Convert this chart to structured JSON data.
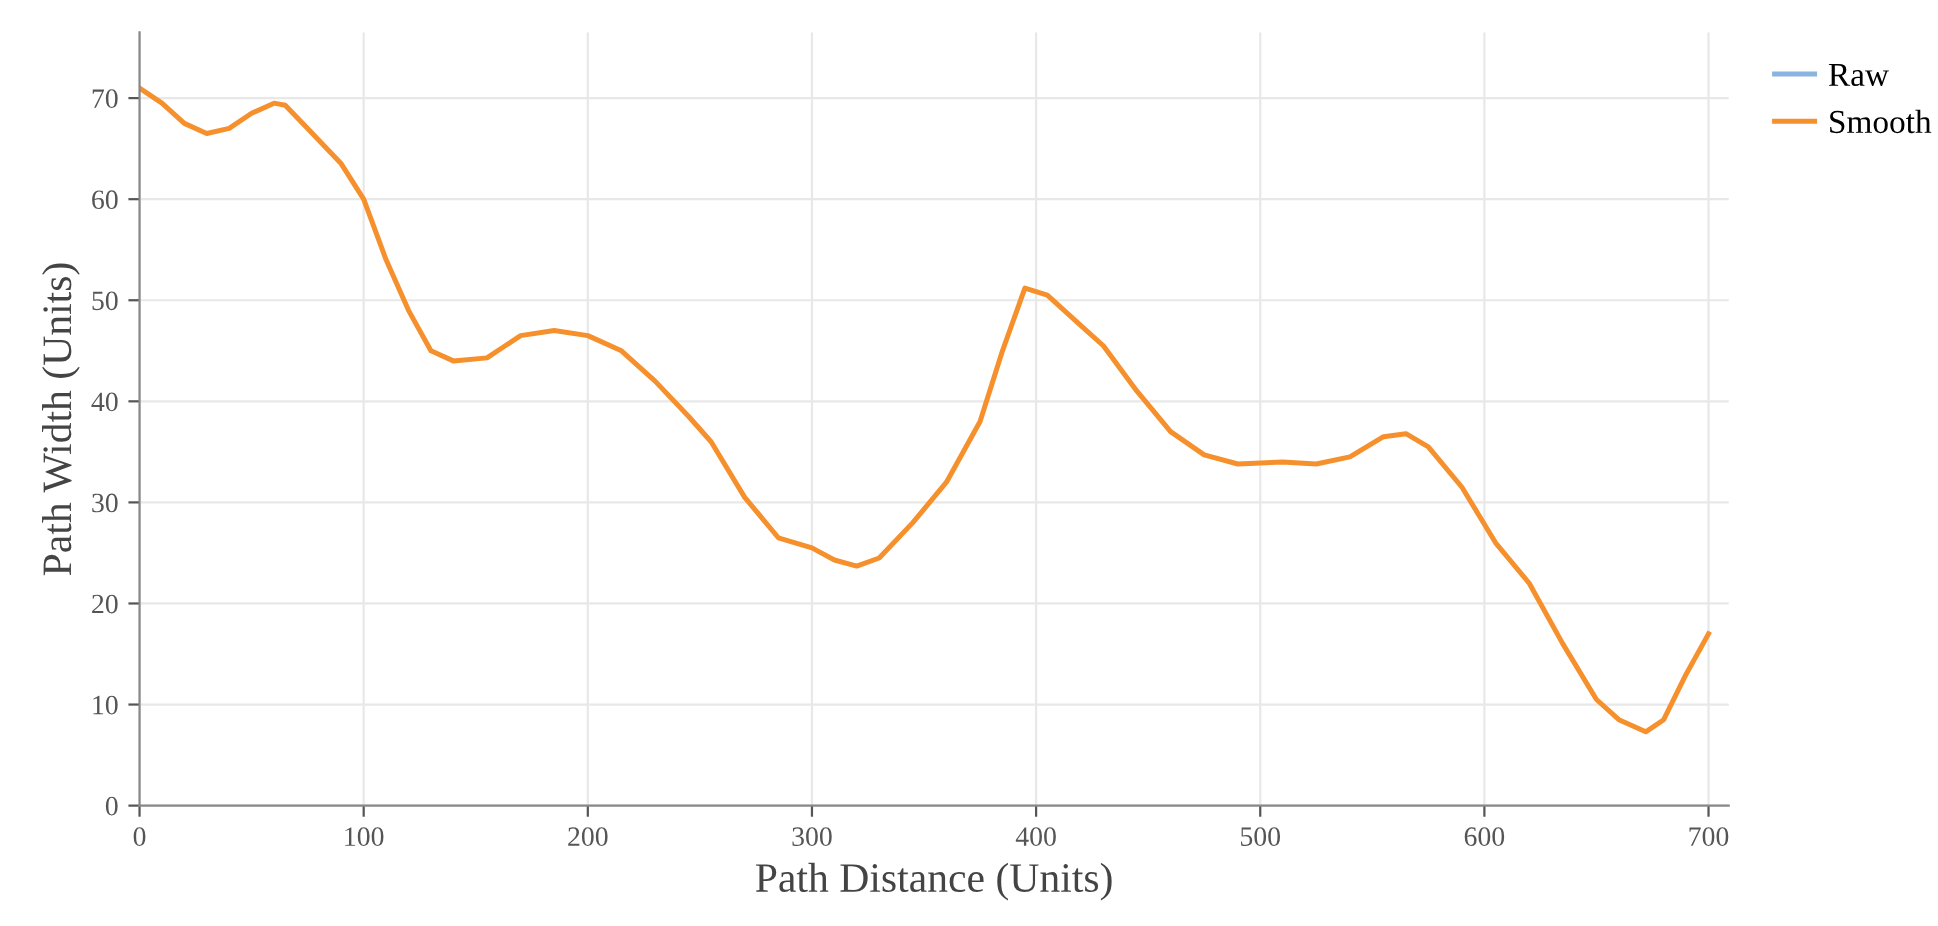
{
  "chart_data": {
    "type": "line",
    "xlabel": "Path Distance (Units)",
    "ylabel": "Path Width (Units)",
    "x": [
      0,
      10,
      20,
      30,
      40,
      50,
      60,
      65,
      75,
      90,
      100,
      110,
      120,
      130,
      140,
      155,
      170,
      185,
      200,
      215,
      230,
      245,
      255,
      270,
      285,
      300,
      310,
      320,
      330,
      345,
      360,
      375,
      385,
      395,
      405,
      420,
      430,
      445,
      460,
      475,
      490,
      510,
      525,
      540,
      555,
      565,
      575,
      590,
      605,
      620,
      635,
      650,
      660,
      672,
      680,
      690,
      700
    ],
    "series": [
      {
        "name": "Raw",
        "color": "#8ab4e0",
        "values": [
          null,
          null,
          null,
          null,
          null,
          null,
          null,
          null,
          null,
          null,
          null,
          null,
          null,
          null,
          null,
          null,
          null,
          null,
          null,
          null,
          null,
          null,
          null,
          null,
          null,
          null,
          null,
          null,
          null,
          null,
          null,
          null,
          null,
          null,
          null,
          null,
          null,
          null,
          null,
          null,
          null,
          null,
          null,
          null,
          null,
          null,
          null,
          null,
          null,
          null,
          null,
          null,
          null,
          null,
          null,
          null,
          null
        ]
      },
      {
        "name": "Smooth",
        "color": "#f5902c",
        "values": [
          71,
          69.5,
          67.5,
          66.5,
          67,
          68.5,
          69.5,
          69.3,
          67,
          63.5,
          60,
          54,
          49,
          45,
          44,
          44.3,
          46.5,
          47,
          46.5,
          45,
          42,
          38.5,
          36,
          30.5,
          26.5,
          25.5,
          24.3,
          23.7,
          24.5,
          28,
          32,
          38,
          45,
          51.2,
          50.5,
          47.5,
          45.5,
          41,
          37,
          34.7,
          33.8,
          34,
          33.8,
          34.5,
          36.5,
          36.8,
          35.5,
          31.5,
          26,
          22,
          16,
          10.5,
          8.5,
          7.3,
          8.5,
          13,
          17
        ]
      }
    ],
    "xlim": [
      0,
      709
    ],
    "ylim": [
      0,
      76.5
    ],
    "xticks": [
      0,
      100,
      200,
      300,
      400,
      500,
      600,
      700
    ],
    "yticks": [
      0,
      10,
      20,
      30,
      40,
      50,
      60,
      70
    ],
    "grid": true,
    "legend": "top right",
    "marker": "none",
    "line_style": "solid"
  }
}
